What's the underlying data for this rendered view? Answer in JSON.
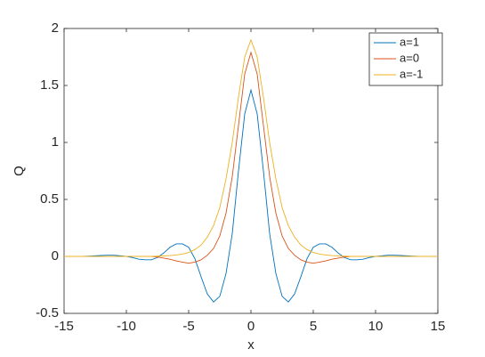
{
  "chart_data": {
    "type": "line",
    "xlabel": "x",
    "ylabel": "Q",
    "x": [
      -15,
      -14.5,
      -14,
      -13.5,
      -13,
      -12.5,
      -12,
      -11.5,
      -11,
      -10.5,
      -10,
      -9.5,
      -9,
      -8.5,
      -8,
      -7.5,
      -7,
      -6.5,
      -6,
      -5.5,
      -5,
      -4.5,
      -4,
      -3.5,
      -3,
      -2.5,
      -2,
      -1.5,
      -1,
      -0.5,
      0,
      0.5,
      1,
      1.5,
      2,
      2.5,
      3,
      3.5,
      4,
      4.5,
      5,
      5.5,
      6,
      6.5,
      7,
      7.5,
      8,
      8.5,
      9,
      9.5,
      10,
      10.5,
      11,
      11.5,
      12,
      12.5,
      13,
      13.5,
      14,
      14.5,
      15
    ],
    "series": [
      {
        "name": "a=1",
        "color": "#0072bd",
        "values": [
          0,
          0,
          0,
          0,
          0.002,
          0.005,
          0.008,
          0.01,
          0.01,
          0.005,
          0,
          -0.01,
          -0.025,
          -0.03,
          -0.03,
          -0.01,
          0.03,
          0.08,
          0.11,
          0.11,
          0.08,
          -0.02,
          -0.18,
          -0.33,
          -0.4,
          -0.35,
          -0.15,
          0.2,
          0.75,
          1.25,
          1.46,
          1.25,
          0.75,
          0.2,
          -0.15,
          -0.35,
          -0.4,
          -0.33,
          -0.18,
          -0.02,
          0.08,
          0.11,
          0.11,
          0.08,
          0.03,
          -0.01,
          -0.03,
          -0.03,
          -0.025,
          -0.01,
          0,
          0.005,
          0.01,
          0.01,
          0.008,
          0.005,
          0.002,
          0,
          0,
          0,
          0
        ]
      },
      {
        "name": "a=0",
        "color": "#d95319",
        "values": [
          0,
          0,
          0,
          0,
          0,
          0,
          0,
          0,
          0,
          0,
          0,
          0,
          0,
          0,
          0,
          -0.005,
          -0.015,
          -0.025,
          -0.04,
          -0.05,
          -0.06,
          -0.05,
          -0.03,
          0.01,
          0.07,
          0.18,
          0.38,
          0.7,
          1.15,
          1.6,
          1.79,
          1.6,
          1.15,
          0.7,
          0.38,
          0.18,
          0.07,
          0.01,
          -0.03,
          -0.05,
          -0.06,
          -0.05,
          -0.04,
          -0.025,
          -0.015,
          -0.005,
          0,
          0,
          0,
          0,
          0,
          0,
          0,
          0,
          0,
          0,
          0,
          0,
          0,
          0,
          0
        ]
      },
      {
        "name": "a=-1",
        "color": "#edb120",
        "values": [
          0,
          0,
          0,
          0,
          0,
          0,
          0,
          0,
          0,
          0,
          0,
          0,
          0,
          0,
          0,
          0.002,
          0.004,
          0.007,
          0.012,
          0.02,
          0.035,
          0.06,
          0.1,
          0.17,
          0.27,
          0.43,
          0.68,
          1.0,
          1.4,
          1.75,
          1.9,
          1.75,
          1.4,
          1.0,
          0.68,
          0.43,
          0.27,
          0.17,
          0.1,
          0.06,
          0.035,
          0.02,
          0.012,
          0.007,
          0.004,
          0.002,
          0,
          0,
          0,
          0,
          0,
          0,
          0,
          0,
          0,
          0,
          0,
          0,
          0,
          0,
          0
        ]
      }
    ],
    "xlim": [
      -15,
      15
    ],
    "ylim": [
      -0.5,
      2
    ],
    "xticks": [
      -15,
      -10,
      -5,
      0,
      5,
      10,
      15
    ],
    "yticks": [
      -0.5,
      0,
      0.5,
      1,
      1.5,
      2
    ],
    "legend": "northeast"
  }
}
